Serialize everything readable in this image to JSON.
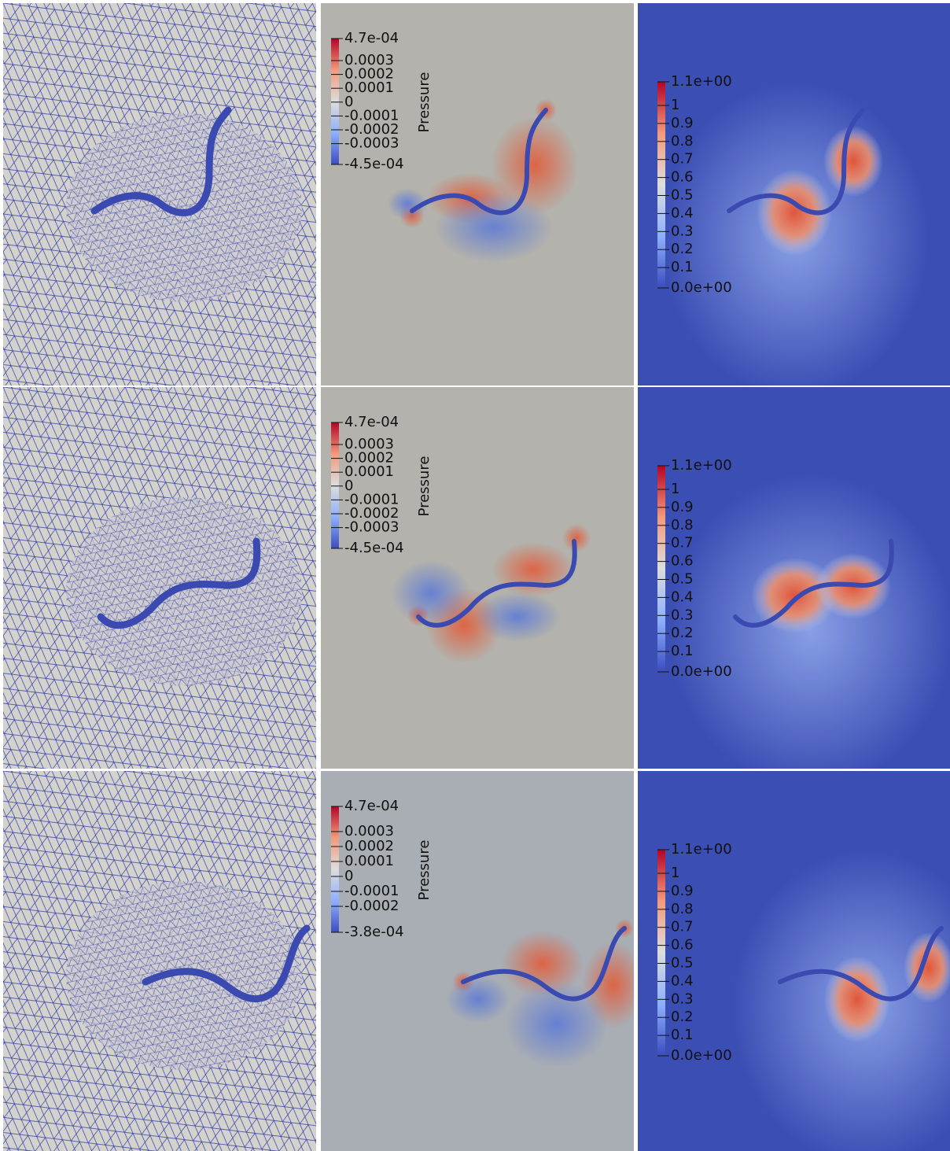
{
  "rows": [
    {
      "pressure_colorbar": {
        "title": "Pressure",
        "labels": [
          "4.7e-04",
          "0.0003",
          "0.0002",
          "0.0001",
          "0",
          "-0.0001",
          "-0.0002",
          "-0.0003",
          "-4.5e-04"
        ]
      },
      "velocity_colorbar": {
        "labels": [
          "1.1e+00",
          "1",
          "0.9",
          "0.8",
          "0.7",
          "0.6",
          "0.5",
          "0.4",
          "0.3",
          "0.2",
          "0.1",
          "0.0e+00"
        ]
      }
    },
    {
      "pressure_colorbar": {
        "title": "Pressure",
        "labels": [
          "4.7e-04",
          "0.0003",
          "0.0002",
          "0.0001",
          "0",
          "-0.0001",
          "-0.0002",
          "-0.0003",
          "-4.5e-04"
        ]
      },
      "velocity_colorbar": {
        "labels": [
          "1.1e+00",
          "1",
          "0.9",
          "0.8",
          "0.7",
          "0.6",
          "0.5",
          "0.4",
          "0.3",
          "0.2",
          "0.1",
          "0.0e+00"
        ]
      }
    },
    {
      "pressure_colorbar": {
        "title": "Pressure",
        "labels": [
          "4.7e-04",
          "0.0003",
          "0.0002",
          "0.0001",
          "0",
          "-0.0001",
          "-0.0002",
          "-3.8e-04"
        ]
      },
      "velocity_colorbar": {
        "labels": [
          "1.1e+00",
          "1",
          "0.9",
          "0.8",
          "0.7",
          "0.6",
          "0.5",
          "0.4",
          "0.3",
          "0.2",
          "0.1",
          "0.0e+00"
        ]
      }
    }
  ]
}
